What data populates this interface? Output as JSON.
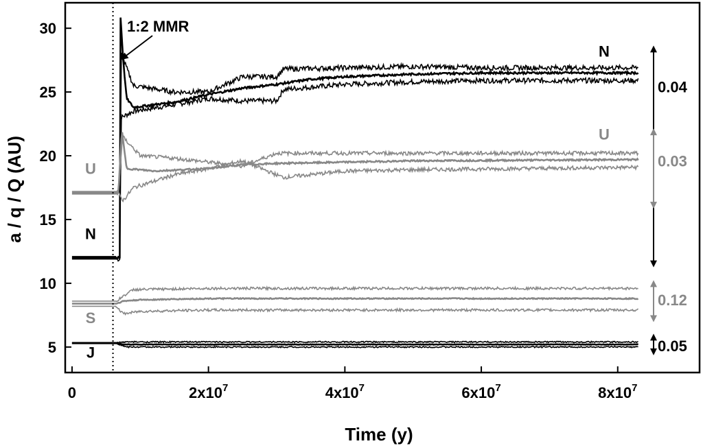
{
  "chart_data": {
    "type": "line",
    "title": "",
    "xlabel": "Time (y)",
    "ylabel": "a / q / Q (AU)",
    "xlim": [
      -1000000,
      92000000
    ],
    "ylim": [
      3,
      32
    ],
    "x_ticks": [
      {
        "value": 0,
        "base": "0",
        "exp": ""
      },
      {
        "value": 20000000,
        "base": "2x10",
        "exp": "7"
      },
      {
        "value": 40000000,
        "base": "4x10",
        "exp": "7"
      },
      {
        "value": 60000000,
        "base": "6x10",
        "exp": "7"
      },
      {
        "value": 80000000,
        "base": "8x10",
        "exp": "7"
      }
    ],
    "y_ticks": [
      5,
      10,
      15,
      20,
      25,
      30
    ],
    "grid": false,
    "legend": "none",
    "colors": {
      "dark": "#000000",
      "gray": "#888888"
    },
    "vline": {
      "x": 6000000,
      "style": "dotted"
    },
    "mmr_annotation": {
      "label": "1:2 MMR",
      "x": 7000000,
      "y": 27.5
    },
    "series": [
      {
        "name": "N",
        "color_key": "dark",
        "jitter": 0.4,
        "a": [
          [
            0,
            12.0
          ],
          [
            6000000,
            12.0
          ],
          [
            7000000,
            12.0
          ],
          [
            7100000,
            31.0
          ],
          [
            7500000,
            27.5
          ],
          [
            8000000,
            24.5
          ],
          [
            9000000,
            23.8
          ],
          [
            15000000,
            24.2
          ],
          [
            20000000,
            24.8
          ],
          [
            25000000,
            25.3
          ],
          [
            30000000,
            25.6
          ],
          [
            35000000,
            26.0
          ],
          [
            40000000,
            26.2
          ],
          [
            50000000,
            26.4
          ],
          [
            60000000,
            26.5
          ],
          [
            83000000,
            26.5
          ]
        ],
        "q": [
          [
            0,
            11.9
          ],
          [
            7000000,
            11.9
          ],
          [
            7200000,
            23.0
          ],
          [
            9000000,
            23.5
          ],
          [
            15000000,
            24.0
          ],
          [
            20000000,
            24.5
          ],
          [
            25000000,
            24.3
          ],
          [
            30000000,
            24.3
          ],
          [
            31000000,
            25.2
          ],
          [
            40000000,
            25.6
          ],
          [
            50000000,
            25.8
          ],
          [
            60000000,
            25.9
          ],
          [
            83000000,
            25.9
          ]
        ],
        "Q": [
          [
            0,
            12.1
          ],
          [
            7000000,
            12.1
          ],
          [
            7200000,
            28.0
          ],
          [
            9000000,
            25.5
          ],
          [
            15000000,
            25.0
          ],
          [
            20000000,
            25.0
          ],
          [
            25000000,
            26.2
          ],
          [
            30000000,
            26.2
          ],
          [
            31000000,
            26.8
          ],
          [
            40000000,
            26.9
          ],
          [
            50000000,
            27.0
          ],
          [
            60000000,
            26.9
          ],
          [
            83000000,
            26.9
          ]
        ],
        "label_left": {
          "text": "N",
          "y": 13.9
        },
        "label_right": {
          "text": "N",
          "y": 28.2
        },
        "ecc": {
          "text": "0.04",
          "y": 25.4
        }
      },
      {
        "name": "U",
        "color_key": "gray",
        "jitter": 0.3,
        "a": [
          [
            0,
            17.1
          ],
          [
            6800000,
            17.1
          ],
          [
            7300000,
            22.0
          ],
          [
            8000000,
            19.0
          ],
          [
            12000000,
            18.8
          ],
          [
            20000000,
            19.0
          ],
          [
            25000000,
            19.3
          ],
          [
            30000000,
            19.4
          ],
          [
            40000000,
            19.5
          ],
          [
            50000000,
            19.6
          ],
          [
            83000000,
            19.7
          ]
        ],
        "q": [
          [
            0,
            17.0
          ],
          [
            6800000,
            17.0
          ],
          [
            7500000,
            16.5
          ],
          [
            9000000,
            17.5
          ],
          [
            15000000,
            18.5
          ],
          [
            20000000,
            19.0
          ],
          [
            25000000,
            19.6
          ],
          [
            30000000,
            18.5
          ],
          [
            31000000,
            18.3
          ],
          [
            40000000,
            18.8
          ],
          [
            50000000,
            18.9
          ],
          [
            83000000,
            19.1
          ]
        ],
        "Q": [
          [
            0,
            17.2
          ],
          [
            6800000,
            17.2
          ],
          [
            7400000,
            21.5
          ],
          [
            10000000,
            20.0
          ],
          [
            15000000,
            19.8
          ],
          [
            20000000,
            19.5
          ],
          [
            25000000,
            19.2
          ],
          [
            30000000,
            20.2
          ],
          [
            40000000,
            20.2
          ],
          [
            50000000,
            20.2
          ],
          [
            83000000,
            20.2
          ]
        ],
        "label_left": {
          "text": "U",
          "y": 19.0
        },
        "label_right": {
          "text": "U",
          "y": 21.7
        },
        "ecc": {
          "text": "0.03",
          "y": 19.6
        }
      },
      {
        "name": "S",
        "color_key": "gray",
        "jitter": 0.2,
        "a": [
          [
            0,
            8.4
          ],
          [
            6500000,
            8.4
          ],
          [
            7500000,
            8.6
          ],
          [
            10000000,
            8.7
          ],
          [
            20000000,
            8.8
          ],
          [
            83000000,
            8.8
          ]
        ],
        "q": [
          [
            0,
            8.2
          ],
          [
            6500000,
            8.2
          ],
          [
            7500000,
            7.6
          ],
          [
            10000000,
            7.8
          ],
          [
            20000000,
            7.9
          ],
          [
            83000000,
            7.9
          ]
        ],
        "Q": [
          [
            0,
            8.6
          ],
          [
            6500000,
            8.6
          ],
          [
            7500000,
            9.0
          ],
          [
            9000000,
            9.5
          ],
          [
            20000000,
            9.6
          ],
          [
            83000000,
            9.6
          ]
        ],
        "label_left": {
          "text": "S",
          "y": 7.3
        },
        "label_right": null,
        "ecc": {
          "text": "0.12",
          "y": 8.7
        }
      },
      {
        "name": "J",
        "color_key": "dark",
        "jitter": 0.1,
        "a": [
          [
            0,
            5.3
          ],
          [
            6500000,
            5.3
          ],
          [
            7500000,
            5.2
          ],
          [
            83000000,
            5.2
          ]
        ],
        "q": [
          [
            0,
            5.3
          ],
          [
            6500000,
            5.3
          ],
          [
            8000000,
            5.0
          ],
          [
            83000000,
            5.0
          ]
        ],
        "Q": [
          [
            0,
            5.35
          ],
          [
            6500000,
            5.35
          ],
          [
            8000000,
            5.4
          ],
          [
            83000000,
            5.4
          ]
        ],
        "label_left": {
          "text": "J",
          "y": 4.6
        },
        "label_right": null,
        "ecc": {
          "text": "0.05",
          "y": 5.1
        }
      }
    ]
  }
}
